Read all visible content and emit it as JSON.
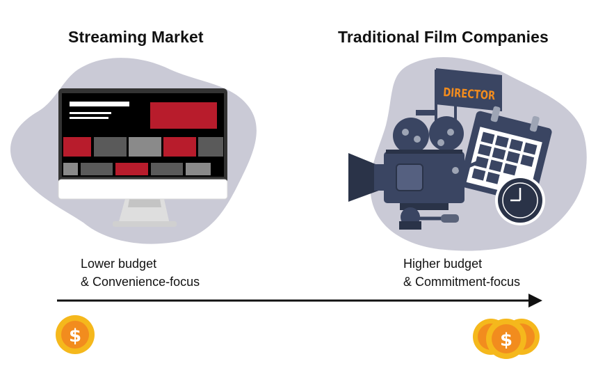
{
  "left_panel": {
    "title": "Streaming Market",
    "caption_line1": "Lower budget",
    "caption_line2": "& Convenience-focus",
    "icon": "desktop-monitor-icon"
  },
  "right_panel": {
    "title": "Traditional Film Companies",
    "caption_line1": "Higher budget",
    "caption_line2": "& Commitment-focus",
    "icon": "movie-camera-icon",
    "flag_text": "DIRECTOR"
  },
  "coin_symbol": "$",
  "colors": {
    "blob": "#cacad6",
    "red": "#b81c2c",
    "navy": "#3a4562",
    "orange": "#f28c1e",
    "coin": "#f5b81c"
  }
}
